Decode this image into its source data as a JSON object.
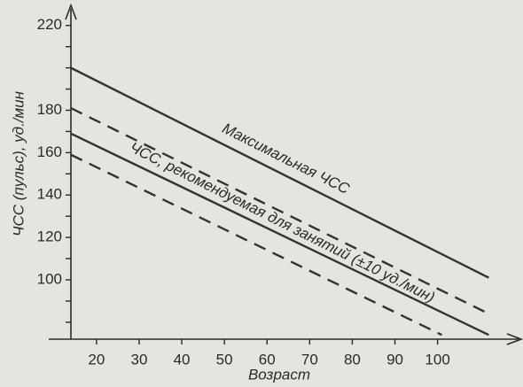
{
  "chart_data": {
    "type": "line",
    "xlabel": "Возраст",
    "ylabel": "ЧСС (пульс), уд./мин",
    "annotations": [
      "Максимальная ЧСС",
      "ЧСС, рекомендуемая для занятий (±10 уд./мин)"
    ],
    "series": [
      {
        "color": "#333333",
        "dash": false,
        "x": [
          14,
          112
        ],
        "values": [
          200,
          101
        ]
      },
      {
        "color": "#333333",
        "dash": true,
        "x": [
          14,
          112
        ],
        "values": [
          181,
          84
        ]
      },
      {
        "color": "#333333",
        "dash": false,
        "x": [
          14,
          112
        ],
        "values": [
          169,
          74
        ]
      },
      {
        "color": "#333333",
        "dash": true,
        "x": [
          14,
          101
        ],
        "values": [
          159,
          74
        ]
      }
    ],
    "xlim": [
      14,
      119
    ],
    "ylim": [
      72,
      227
    ],
    "xticks": [
      20,
      30,
      40,
      50,
      60,
      70,
      80,
      90,
      100
    ],
    "yticks": [
      100,
      120,
      140,
      160,
      180,
      220
    ],
    "yticks_minor": [
      80,
      90,
      110,
      130,
      150,
      170,
      190,
      200,
      210
    ]
  }
}
